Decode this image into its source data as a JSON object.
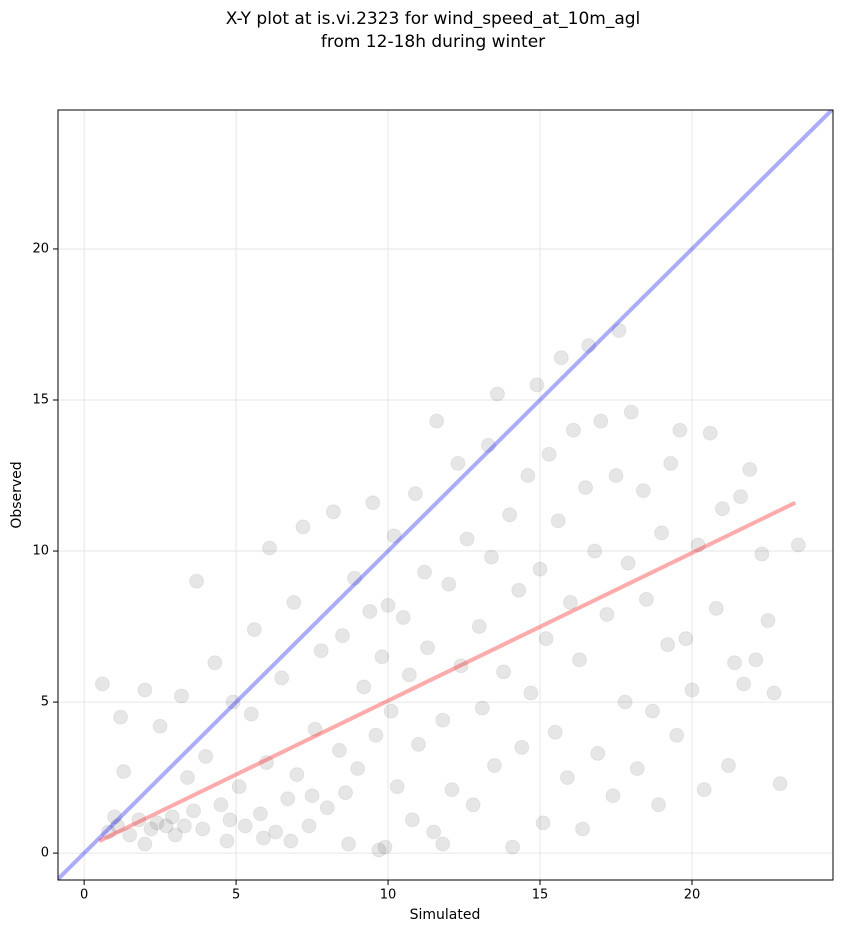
{
  "chart_data": {
    "type": "scatter",
    "title": [
      "X-Y plot at is.vi.2323 for wind_speed_at_10m_agl",
      "from 12-18h during winter"
    ],
    "x_label": "Simulated",
    "y_label": "Observed",
    "xlim": [
      -0.86,
      24.64
    ],
    "ylim": [
      -0.89,
      24.6
    ],
    "xticks": [
      0,
      5,
      10,
      15,
      20
    ],
    "yticks": [
      0,
      5,
      10,
      15,
      20
    ],
    "grid": true,
    "color": "#404040",
    "x": [
      0.6,
      0.8,
      1.0,
      1.1,
      1.2,
      1.3,
      1.5,
      1.8,
      2.0,
      2.2,
      2.4,
      2.5,
      2.7,
      2.9,
      3.0,
      3.2,
      3.4,
      3.6,
      3.7,
      3.9,
      4.0,
      4.3,
      4.5,
      4.7,
      4.9,
      5.1,
      5.3,
      5.5,
      5.6,
      5.8,
      6.0,
      6.1,
      6.3,
      6.5,
      6.7,
      6.9,
      7.0,
      7.2,
      7.4,
      7.6,
      7.8,
      8.0,
      8.2,
      8.4,
      8.5,
      8.7,
      8.9,
      9.0,
      9.2,
      9.4,
      9.5,
      9.6,
      9.7,
      9.8,
      10.0,
      10.1,
      10.2,
      10.3,
      10.5,
      10.7,
      10.8,
      10.9,
      11.0,
      11.2,
      11.3,
      11.5,
      11.6,
      11.8,
      12.0,
      12.1,
      12.3,
      12.4,
      12.6,
      12.8,
      13.0,
      13.1,
      13.3,
      13.4,
      13.5,
      13.6,
      13.8,
      14.0,
      14.1,
      14.3,
      14.4,
      14.6,
      14.7,
      14.9,
      15.0,
      15.1,
      15.2,
      15.3,
      15.5,
      15.6,
      15.7,
      15.9,
      16.0,
      16.1,
      16.3,
      16.4,
      16.5,
      16.6,
      16.8,
      16.9,
      17.0,
      17.2,
      17.4,
      17.5,
      17.6,
      17.8,
      17.9,
      18.0,
      18.2,
      18.4,
      18.5,
      18.7,
      18.9,
      19.0,
      19.2,
      19.3,
      19.5,
      19.6,
      19.8,
      20.0,
      20.2,
      20.4,
      20.6,
      20.8,
      21.0,
      21.2,
      21.4,
      21.6,
      21.7,
      21.9,
      22.1,
      22.3,
      22.5,
      22.7,
      22.9,
      23.5,
      2.0,
      3.3,
      6.8,
      7.5,
      9.9,
      4.8,
      5.9,
      11.8,
      8.6
    ],
    "values": [
      5.6,
      0.7,
      1.2,
      0.9,
      4.5,
      2.7,
      0.6,
      1.1,
      5.4,
      0.8,
      1.0,
      4.2,
      0.9,
      1.2,
      0.6,
      5.2,
      2.5,
      1.4,
      9.0,
      0.8,
      3.2,
      6.3,
      1.6,
      0.4,
      5.0,
      2.2,
      0.9,
      4.6,
      7.4,
      1.3,
      3.0,
      10.1,
      0.7,
      5.8,
      1.8,
      8.3,
      2.6,
      10.8,
      0.9,
      4.1,
      6.7,
      1.5,
      11.3,
      3.4,
      7.2,
      0.3,
      9.1,
      2.8,
      5.5,
      8.0,
      11.6,
      3.9,
      0.1,
      6.5,
      8.2,
      4.7,
      10.5,
      2.2,
      7.8,
      5.9,
      1.1,
      11.9,
      3.6,
      9.3,
      6.8,
      0.7,
      14.3,
      4.4,
      8.9,
      2.1,
      12.9,
      6.2,
      10.4,
      1.6,
      7.5,
      4.8,
      13.5,
      9.8,
      2.9,
      15.2,
      6.0,
      11.2,
      0.2,
      8.7,
      3.5,
      12.5,
      5.3,
      15.5,
      9.4,
      1.0,
      7.1,
      13.2,
      4.0,
      11.0,
      16.4,
      2.5,
      8.3,
      14.0,
      6.4,
      0.8,
      12.1,
      16.8,
      10.0,
      3.3,
      14.3,
      7.9,
      1.9,
      12.5,
      17.3,
      5.0,
      9.6,
      14.6,
      2.8,
      12.0,
      8.4,
      4.7,
      1.6,
      10.6,
      6.9,
      12.9,
      3.9,
      14.0,
      7.1,
      5.4,
      10.2,
      2.1,
      13.9,
      8.1,
      11.4,
      2.9,
      6.3,
      11.8,
      5.6,
      12.7,
      6.4,
      9.9,
      7.7,
      5.3,
      2.3,
      10.2,
      0.3,
      0.9,
      0.4,
      1.9,
      0.2,
      1.1,
      0.5,
      0.3,
      2.0
    ],
    "lines": [
      {
        "color": "#0000ff",
        "x": [
          -0.86,
          24.64
        ],
        "values": [
          -0.86,
          24.64
        ]
      },
      {
        "color": "#ff0000",
        "x": [
          0.5,
          23.4
        ],
        "values": [
          0.4,
          11.6
        ]
      }
    ]
  }
}
